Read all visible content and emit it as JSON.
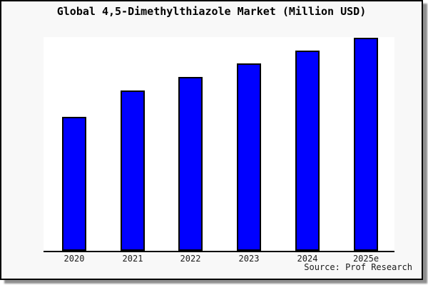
{
  "chart_data": {
    "type": "bar",
    "title": "Global 4,5-Dimethylthiazole Market (Million USD)",
    "categories": [
      "2020",
      "2021",
      "2022",
      "2023",
      "2024",
      "2025e"
    ],
    "values": [
      62.9,
      75.1,
      81.7,
      87.8,
      93.9,
      100
    ],
    "value_scale_note": "No y-axis ticks or gridlines shown; values are relative bar heights normalized to 2025e = 100",
    "xlabel": "",
    "ylabel": "",
    "ylim": [
      0,
      100.5
    ],
    "grid": false,
    "legend": false,
    "bar_fill_color": "#0000ff",
    "bar_outline_color": "#000000"
  },
  "source": {
    "label": "Source: Prof Research"
  },
  "colors": {
    "frame_background": "#f8f8f8",
    "plot_background": "#ffffff",
    "frame_border": "#000000",
    "drop_shadow": "#8f8f8f",
    "axis": "#000000",
    "text": "#000000"
  }
}
